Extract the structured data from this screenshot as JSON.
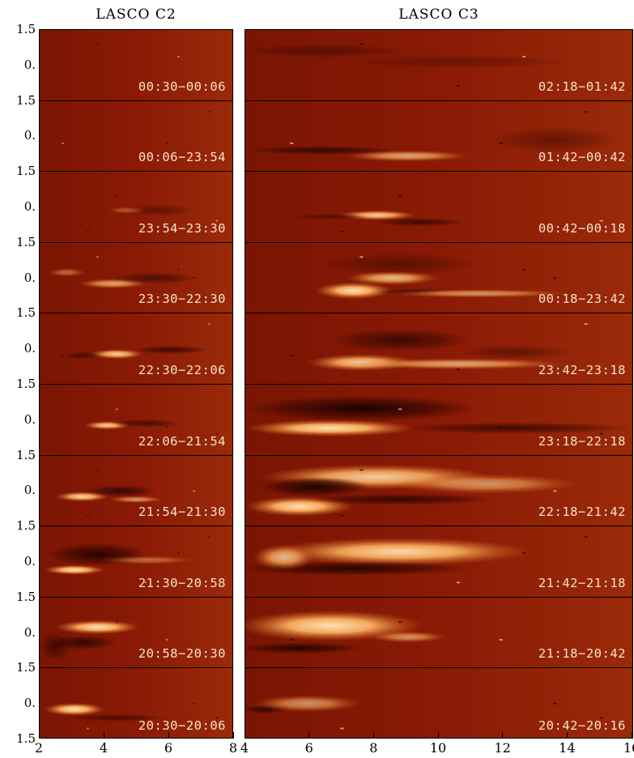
{
  "titles": {
    "left": "LASCO C2",
    "right": "LASCO C3"
  },
  "y_tick_labels": [
    "1.5",
    "0."
  ],
  "left_panels": [
    {
      "label": "00:30−00:06"
    },
    {
      "label": "00:06−23:54"
    },
    {
      "label": "23:54−23:30"
    },
    {
      "label": "23:30−22:30"
    },
    {
      "label": "22:30−22:06"
    },
    {
      "label": "22:06−21:54"
    },
    {
      "label": "21:54−21:30"
    },
    {
      "label": "21:30−20:58"
    },
    {
      "label": "20:58−20:30"
    },
    {
      "label": "20:30−20:06"
    }
  ],
  "right_panels": [
    {
      "label": "02:18−01:42"
    },
    {
      "label": "01:42−00:42"
    },
    {
      "label": "00:42−00:18"
    },
    {
      "label": "00:18−23:42"
    },
    {
      "label": "23:42−23:18"
    },
    {
      "label": "23:18−22:18"
    },
    {
      "label": "22:18−21:42"
    },
    {
      "label": "21:42−21:18"
    },
    {
      "label": "21:18−20:42"
    },
    {
      "label": "20:42−20:16"
    }
  ],
  "x_axis_left": [
    "2",
    "4",
    "6",
    "8"
  ],
  "x_axis_right": [
    "4",
    "6",
    "8",
    "10",
    "12",
    "14",
    "16"
  ],
  "colors": {
    "background": "#8a1a05",
    "bright": "#fde2b8",
    "dark": "#1a0200",
    "mid": "#c85a18"
  }
}
